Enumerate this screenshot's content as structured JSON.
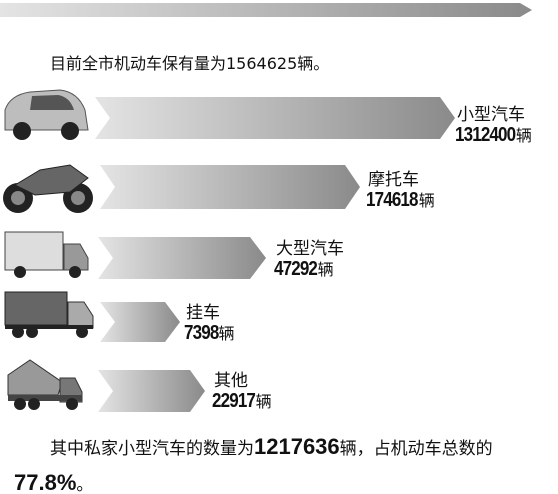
{
  "header": {
    "intro": "目前全市机动车保有量为1564625辆。"
  },
  "items": [
    {
      "label": "小型汽车",
      "value": 1312400,
      "unit": "辆"
    },
    {
      "label": "摩托车",
      "value": 174618,
      "unit": "辆"
    },
    {
      "label": "大型汽车",
      "value": 47292,
      "unit": "辆"
    },
    {
      "label": "挂车",
      "value": 7398,
      "unit": "辆"
    },
    {
      "label": "其他",
      "value": 22917,
      "unit": "辆"
    }
  ],
  "footer": {
    "lead": "其中私家小型汽车的数量为",
    "count": 1217636,
    "middle": "辆，占机动车总数的",
    "share": "77.8%",
    "end": "。"
  }
}
